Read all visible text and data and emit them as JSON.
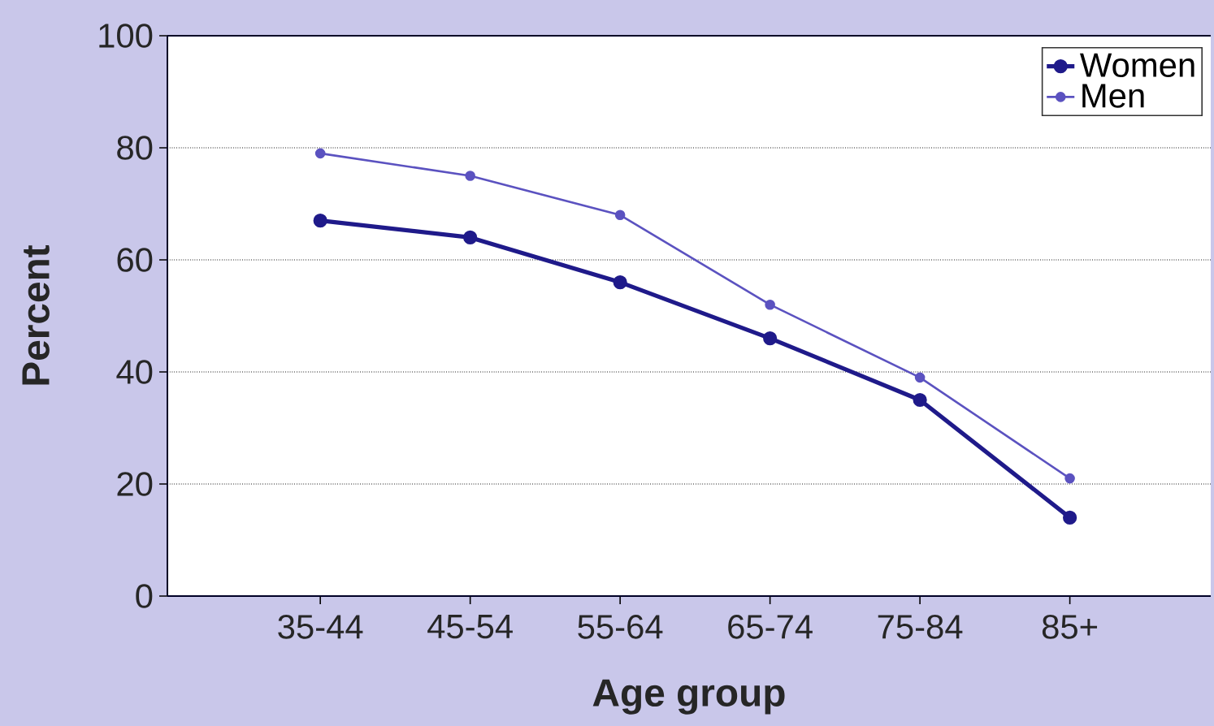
{
  "chart_data": {
    "type": "line",
    "xlabel": "Age group",
    "ylabel": "Percent",
    "categories": [
      "35-44",
      "45-54",
      "55-64",
      "65-74",
      "75-84",
      "85+"
    ],
    "series": [
      {
        "name": "Women",
        "color": "#1f1a8a",
        "values": [
          67,
          64,
          56,
          46,
          35,
          14
        ]
      },
      {
        "name": "Men",
        "color": "#5b52c0",
        "values": [
          79,
          75,
          68,
          52,
          39,
          21
        ]
      }
    ],
    "ylim": [
      0,
      100
    ],
    "yticks": [
      0,
      20,
      40,
      60,
      80,
      100
    ],
    "grid": "y",
    "legend": "top right",
    "marker": "circle",
    "line_style": "solid"
  }
}
